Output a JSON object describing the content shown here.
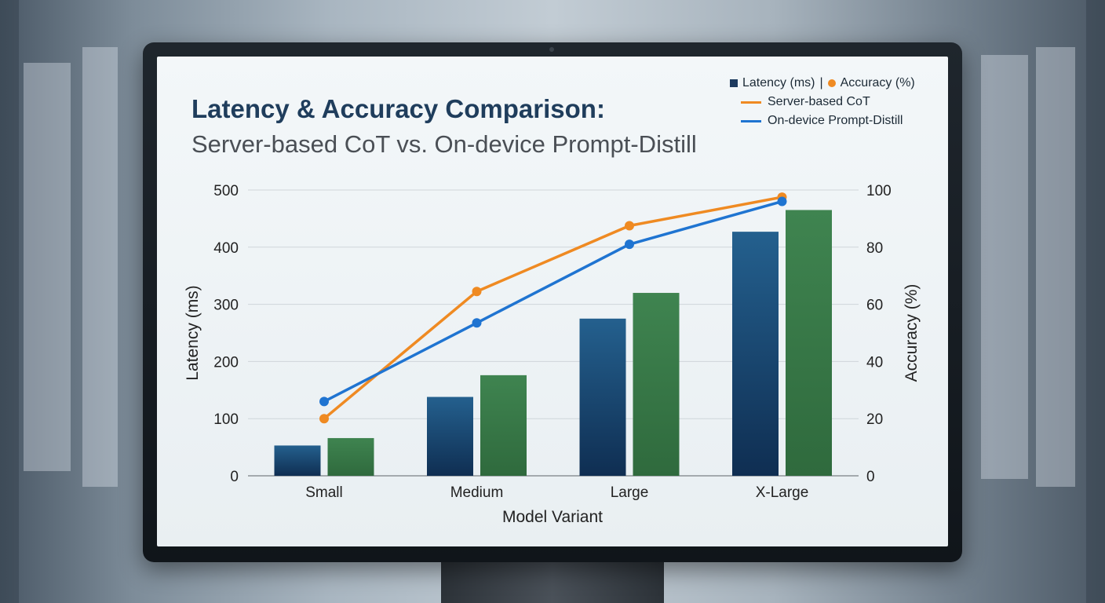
{
  "chart_data": {
    "type": "bar",
    "title": "Latency & Accuracy Comparison:",
    "subtitle": "Server-based CoT vs. On-device Prompt-Distill",
    "categories": [
      "Small",
      "Medium",
      "Large",
      "X-Large"
    ],
    "xlabel": "Model Variant",
    "ylabel_left": "Latency (ms)",
    "ylabel_right": "Accuracy (%)",
    "ylim_left": [
      0,
      500
    ],
    "ylim_right": [
      0,
      100
    ],
    "yticks_left": [
      "0",
      "100",
      "200",
      "300",
      "400",
      "500"
    ],
    "yticks_right": [
      "0",
      "20",
      "40",
      "60",
      "80",
      "100"
    ],
    "grid": true,
    "bar_series": [
      {
        "values": [
          53,
          138,
          275,
          427
        ],
        "color": "#1c4a72"
      },
      {
        "values": [
          66,
          176,
          320,
          465
        ],
        "color": "#3a7a4a"
      }
    ],
    "line_series": [
      {
        "name": "Server-based CoT",
        "values": [
          20,
          64.5,
          87.5,
          97.5
        ],
        "color": "#ef8a22"
      },
      {
        "name": "On-device Prompt-Distill",
        "values": [
          26,
          53.5,
          81,
          96
        ],
        "color": "#1f74d1"
      }
    ],
    "legend": {
      "header_latency": "Latency (ms)",
      "separator": "|",
      "header_accuracy": "Accuracy (%)",
      "placement": "top-right",
      "latency_color": "#1c3a5e",
      "accuracy_color": "#ef8a22"
    }
  }
}
